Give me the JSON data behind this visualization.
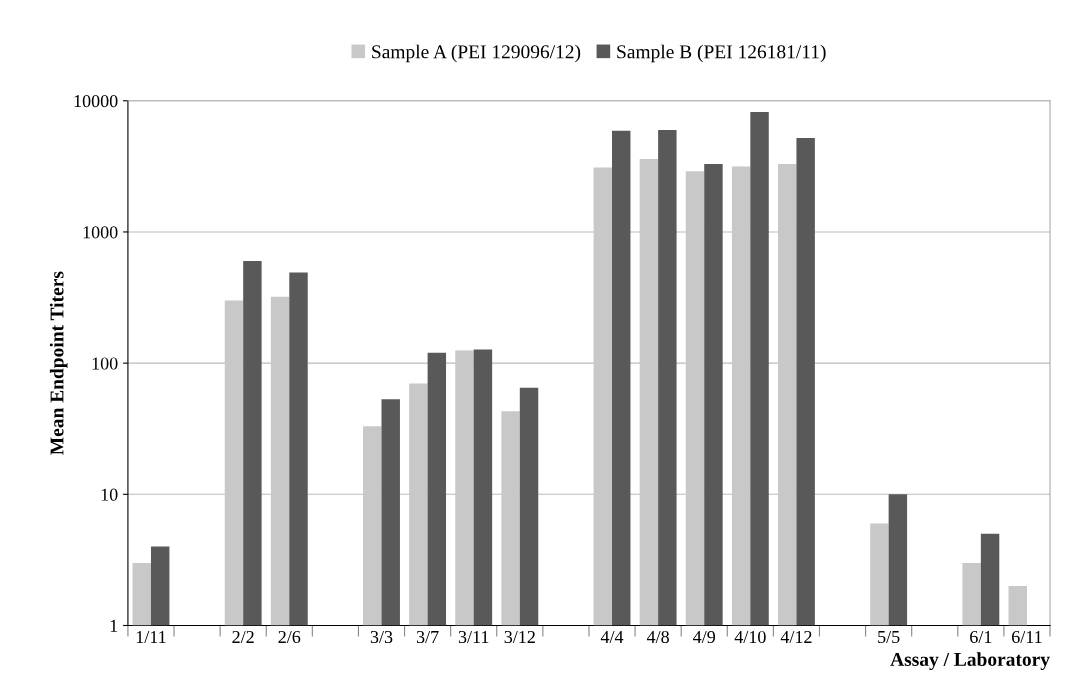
{
  "chart_data": {
    "type": "bar",
    "xlabel": "Assay / Laboratory",
    "ylabel": "Mean Endpoint Titers",
    "categories": [
      "1/11",
      null,
      "2/2",
      "2/6",
      null,
      "3/3",
      "3/7",
      "3/11",
      "3/12",
      null,
      "4/4",
      "4/8",
      "4/9",
      "4/10",
      "4/12",
      null,
      "5/5",
      null,
      "6/1",
      "6/11"
    ],
    "series": [
      {
        "name": "Sample A (PEI 129096/12)",
        "color": "#c8c8c8",
        "values": [
          3,
          null,
          300,
          320,
          null,
          33,
          70,
          125,
          43,
          null,
          3100,
          3600,
          2900,
          3150,
          3300,
          null,
          6,
          null,
          3,
          2
        ]
      },
      {
        "name": "Sample B (PEI 126181/11)",
        "color": "#595959",
        "values": [
          4,
          null,
          600,
          490,
          null,
          53,
          120,
          127,
          65,
          null,
          5900,
          6000,
          3300,
          8200,
          5200,
          null,
          10,
          null,
          5,
          null
        ]
      }
    ],
    "log": "y",
    "ylim": [
      1,
      10000
    ],
    "yticks": [
      1,
      10,
      100,
      1000,
      10000
    ],
    "grid": "y",
    "legend": "top"
  }
}
